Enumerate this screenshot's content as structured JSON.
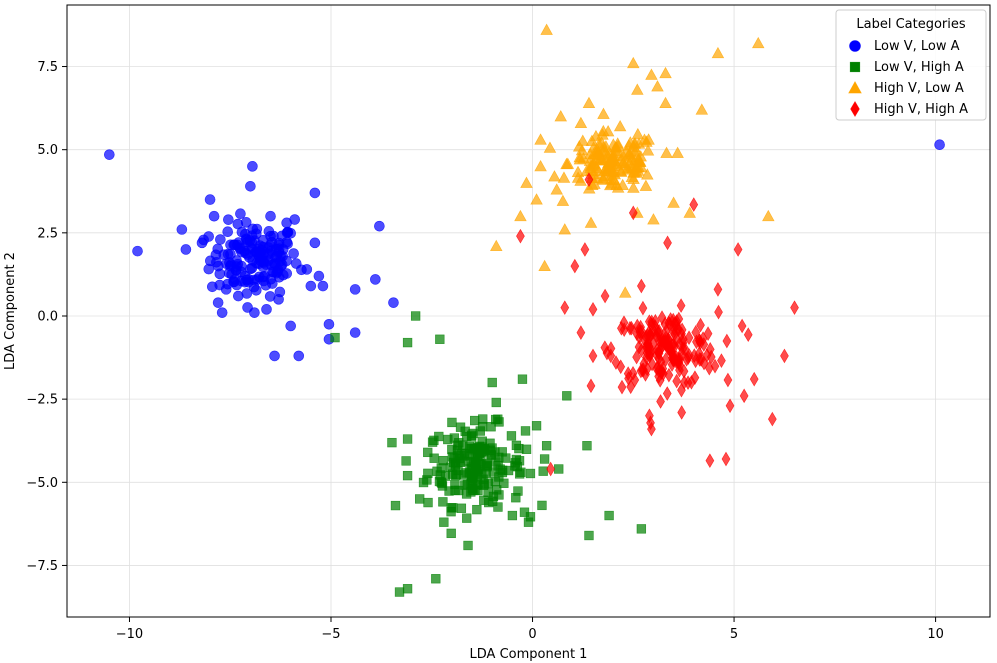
{
  "chart_data": {
    "type": "scatter",
    "title": "",
    "xlabel": "LDA Component 1",
    "ylabel": "LDA Component 2",
    "xlim": [
      -11.55,
      11.35
    ],
    "ylim": [
      -9.05,
      9.35
    ],
    "grid": true,
    "x_ticks": [
      -10,
      -5,
      0,
      5,
      10
    ],
    "x_tick_labels": [
      "−10",
      "−5",
      "0",
      "5",
      "10"
    ],
    "y_ticks": [
      -7.5,
      -5.0,
      -2.5,
      0.0,
      2.5,
      5.0,
      7.5
    ],
    "y_tick_labels": [
      "−7.5",
      "−5.0",
      "−2.5",
      "0.0",
      "2.5",
      "5.0",
      "7.5"
    ],
    "legend": {
      "title": "Label Categories",
      "placement": "top-right"
    },
    "series": [
      {
        "name": "Low V, Low A",
        "color": "#0000ff",
        "marker": "circle",
        "center": [
          -6.9,
          1.7
        ],
        "spread": [
          0.55,
          0.55
        ],
        "n": 150,
        "points": [
          [
            -10.5,
            4.85
          ],
          [
            -9.8,
            1.95
          ],
          [
            -8.7,
            2.6
          ],
          [
            -8.6,
            2.0
          ],
          [
            -8.2,
            2.2
          ],
          [
            -8.0,
            3.5
          ],
          [
            -7.9,
            3.0
          ],
          [
            -7.8,
            0.4
          ],
          [
            -7.7,
            0.1
          ],
          [
            -7.6,
            0.8
          ],
          [
            -7.3,
            0.6
          ],
          [
            -7.0,
            3.9
          ],
          [
            -6.95,
            4.5
          ],
          [
            -6.9,
            0.1
          ],
          [
            -6.6,
            0.2
          ],
          [
            -6.5,
            3.0
          ],
          [
            -6.4,
            -1.2
          ],
          [
            -6.2,
            1.8
          ],
          [
            -6.1,
            2.8
          ],
          [
            -6.0,
            -0.3
          ],
          [
            -5.9,
            2.9
          ],
          [
            -5.8,
            -1.2
          ],
          [
            -5.6,
            1.4
          ],
          [
            -5.5,
            0.9
          ],
          [
            -5.4,
            3.7
          ],
          [
            -5.4,
            2.2
          ],
          [
            -5.3,
            1.2
          ],
          [
            -5.2,
            0.9
          ],
          [
            -5.05,
            -0.25
          ],
          [
            -5.05,
            -0.7
          ],
          [
            -4.4,
            0.8
          ],
          [
            -4.4,
            -0.5
          ],
          [
            -3.8,
            2.7
          ],
          [
            -3.9,
            1.1
          ],
          [
            -3.45,
            0.4
          ],
          [
            -6.3,
            0.5
          ],
          [
            -6.5,
            2.4
          ],
          [
            -7.5,
            1.5
          ],
          [
            10.1,
            5.15
          ]
        ]
      },
      {
        "name": "Low V, High A",
        "color": "#008000",
        "marker": "square",
        "center": [
          -1.4,
          -4.5
        ],
        "spread": [
          0.6,
          0.6
        ],
        "n": 180,
        "points": [
          [
            -3.3,
            -8.3
          ],
          [
            -3.1,
            -8.2
          ],
          [
            -2.4,
            -7.9
          ],
          [
            -1.6,
            -6.9
          ],
          [
            -3.4,
            -5.7
          ],
          [
            -0.1,
            -6.2
          ],
          [
            -0.2,
            -5.9
          ],
          [
            1.4,
            -6.6
          ],
          [
            1.9,
            -6.0
          ],
          [
            2.7,
            -6.4
          ],
          [
            0.65,
            -4.6
          ],
          [
            1.35,
            -3.9
          ],
          [
            0.85,
            -2.4
          ],
          [
            -0.25,
            -1.9
          ],
          [
            -1.0,
            -2.0
          ],
          [
            -4.9,
            -0.65
          ],
          [
            -2.9,
            0.0
          ],
          [
            -3.1,
            -0.8
          ],
          [
            -2.3,
            -0.7
          ],
          [
            -3.1,
            -3.7
          ],
          [
            -3.1,
            -4.8
          ],
          [
            -2.8,
            -5.5
          ],
          [
            0.3,
            -4.3
          ],
          [
            0.1,
            -3.3
          ],
          [
            -0.5,
            -6.0
          ],
          [
            -2.2,
            -6.2
          ],
          [
            -0.9,
            -2.6
          ],
          [
            -2.6,
            -4.1
          ],
          [
            -2.0,
            -3.2
          ],
          [
            0.35,
            -3.9
          ]
        ]
      },
      {
        "name": "High V, Low A",
        "color": "#ffa500",
        "marker": "triangle",
        "center": [
          2.0,
          4.6
        ],
        "spread": [
          0.55,
          0.45
        ],
        "n": 150,
        "points": [
          [
            0.35,
            8.6
          ],
          [
            4.6,
            7.9
          ],
          [
            5.6,
            8.2
          ],
          [
            2.5,
            7.6
          ],
          [
            2.95,
            7.25
          ],
          [
            3.3,
            7.3
          ],
          [
            3.1,
            6.9
          ],
          [
            2.6,
            6.8
          ],
          [
            4.2,
            6.2
          ],
          [
            3.3,
            6.4
          ],
          [
            1.4,
            6.4
          ],
          [
            0.7,
            6.0
          ],
          [
            0.2,
            5.3
          ],
          [
            -0.15,
            4.0
          ],
          [
            -0.3,
            3.0
          ],
          [
            -0.9,
            2.1
          ],
          [
            0.3,
            1.5
          ],
          [
            0.8,
            2.6
          ],
          [
            2.3,
            0.7
          ],
          [
            5.85,
            3.0
          ],
          [
            3.5,
            3.4
          ],
          [
            3.9,
            3.1
          ],
          [
            1.45,
            2.8
          ],
          [
            2.6,
            3.1
          ],
          [
            3.0,
            2.9
          ],
          [
            0.1,
            3.5
          ],
          [
            0.6,
            3.8
          ],
          [
            0.2,
            4.5
          ],
          [
            3.6,
            4.9
          ],
          [
            1.2,
            5.8
          ]
        ]
      },
      {
        "name": "High V, High A",
        "color": "#ff0000",
        "marker": "diamond",
        "center": [
          3.3,
          -1.0
        ],
        "spread": [
          0.65,
          0.55
        ],
        "n": 180,
        "points": [
          [
            4.4,
            -4.35
          ],
          [
            4.8,
            -4.3
          ],
          [
            2.95,
            -3.4
          ],
          [
            2.9,
            -3.0
          ],
          [
            5.95,
            -3.1
          ],
          [
            6.25,
            -1.2
          ],
          [
            6.5,
            0.25
          ],
          [
            5.1,
            2.0
          ],
          [
            4.0,
            3.35
          ],
          [
            3.35,
            2.2
          ],
          [
            2.5,
            3.1
          ],
          [
            1.4,
            4.1
          ],
          [
            -0.3,
            2.4
          ],
          [
            1.3,
            2.0
          ],
          [
            1.05,
            1.5
          ],
          [
            0.8,
            0.25
          ],
          [
            1.2,
            -0.5
          ],
          [
            1.5,
            -1.2
          ],
          [
            1.45,
            -2.1
          ],
          [
            0.45,
            -4.6
          ],
          [
            5.5,
            -1.9
          ],
          [
            5.25,
            -2.4
          ],
          [
            4.9,
            -2.7
          ],
          [
            2.6,
            -0.3
          ],
          [
            1.8,
            0.6
          ],
          [
            2.7,
            0.9
          ],
          [
            1.5,
            0.2
          ],
          [
            3.7,
            -2.9
          ],
          [
            4.6,
            0.8
          ],
          [
            5.2,
            -0.3
          ]
        ]
      }
    ]
  }
}
